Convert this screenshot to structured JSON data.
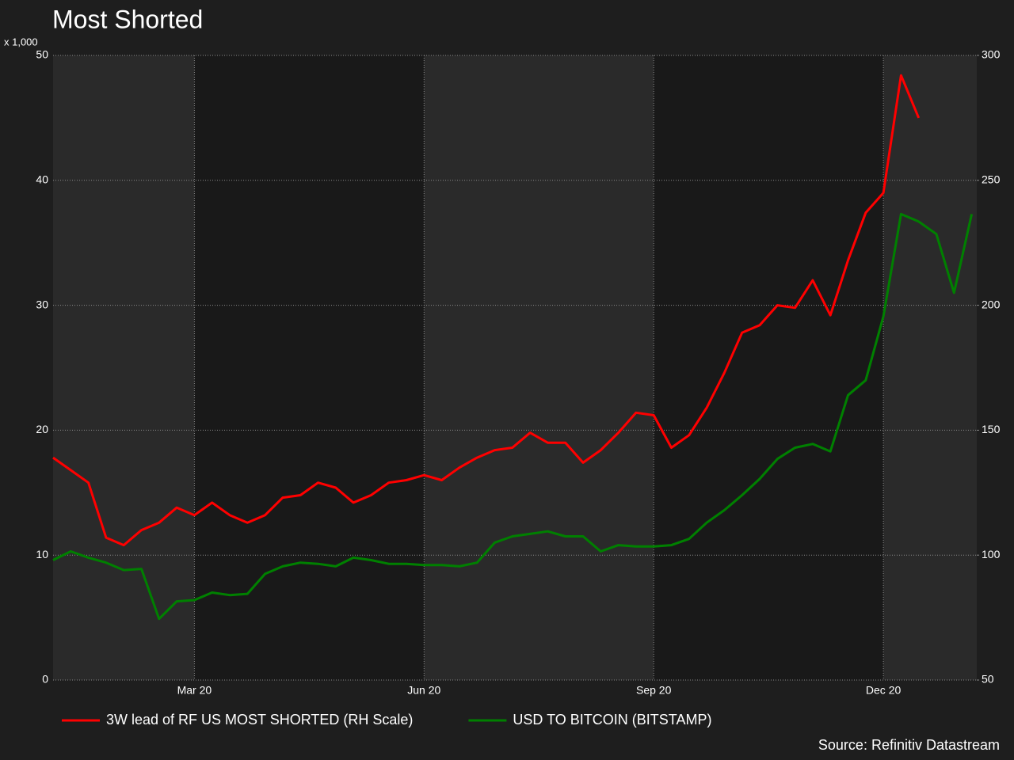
{
  "chart_data": {
    "type": "line",
    "title": "Most Shorted",
    "y_unit_label": "x 1,000",
    "source": "Source: Refinitiv Datastream",
    "categories": [
      null,
      null,
      null,
      null,
      null,
      null,
      null,
      null,
      "Mar 20",
      null,
      null,
      null,
      null,
      null,
      null,
      null,
      null,
      null,
      null,
      null,
      null,
      "Jun 20",
      null,
      null,
      null,
      null,
      null,
      null,
      null,
      null,
      null,
      null,
      null,
      null,
      "Sep 20",
      null,
      null,
      null,
      null,
      null,
      null,
      null,
      null,
      null,
      null,
      null,
      null,
      "Dec 20",
      null,
      null,
      null,
      null,
      null
    ],
    "series": [
      {
        "name": "3W lead of RF US MOST SHORTED (RH Scale)",
        "color": "#ff0000",
        "axis": "y2",
        "values": [
          139,
          134,
          129,
          107,
          104,
          110,
          113,
          119,
          116,
          121,
          116,
          113,
          116,
          123,
          124,
          129,
          127,
          121,
          124,
          129,
          130,
          132,
          130,
          135,
          139,
          142,
          143,
          149,
          145,
          145,
          137,
          142,
          149,
          157,
          156,
          143,
          148,
          159,
          173,
          189,
          192,
          200,
          199,
          210,
          196,
          218,
          237,
          245,
          292,
          275,
          null,
          null,
          null
        ]
      },
      {
        "name": "USD TO BITCOIN (BITSTAMP)",
        "color": "#008000",
        "values": [
          9.6,
          10.3,
          9.8,
          9.4,
          8.8,
          8.9,
          4.9,
          6.3,
          6.4,
          7.0,
          6.8,
          6.9,
          8.5,
          9.1,
          9.4,
          9.3,
          9.1,
          9.8,
          9.6,
          9.3,
          9.3,
          9.2,
          9.2,
          9.1,
          9.4,
          11.0,
          11.5,
          11.7,
          11.9,
          11.5,
          11.5,
          10.3,
          10.8,
          10.7,
          10.7,
          10.8,
          11.3,
          12.6,
          13.6,
          14.8,
          16.1,
          17.7,
          18.6,
          18.9,
          18.3,
          22.8,
          24.0,
          29.1,
          37.3,
          36.7,
          35.7,
          31.0,
          37.3
        ]
      }
    ],
    "ylim": [
      0,
      50
    ],
    "yticks": [
      0,
      10,
      20,
      30,
      40,
      50
    ],
    "y2lim": [
      50,
      300
    ],
    "y2ticks": [
      50,
      100,
      150,
      200,
      250,
      300
    ],
    "grid": true
  }
}
